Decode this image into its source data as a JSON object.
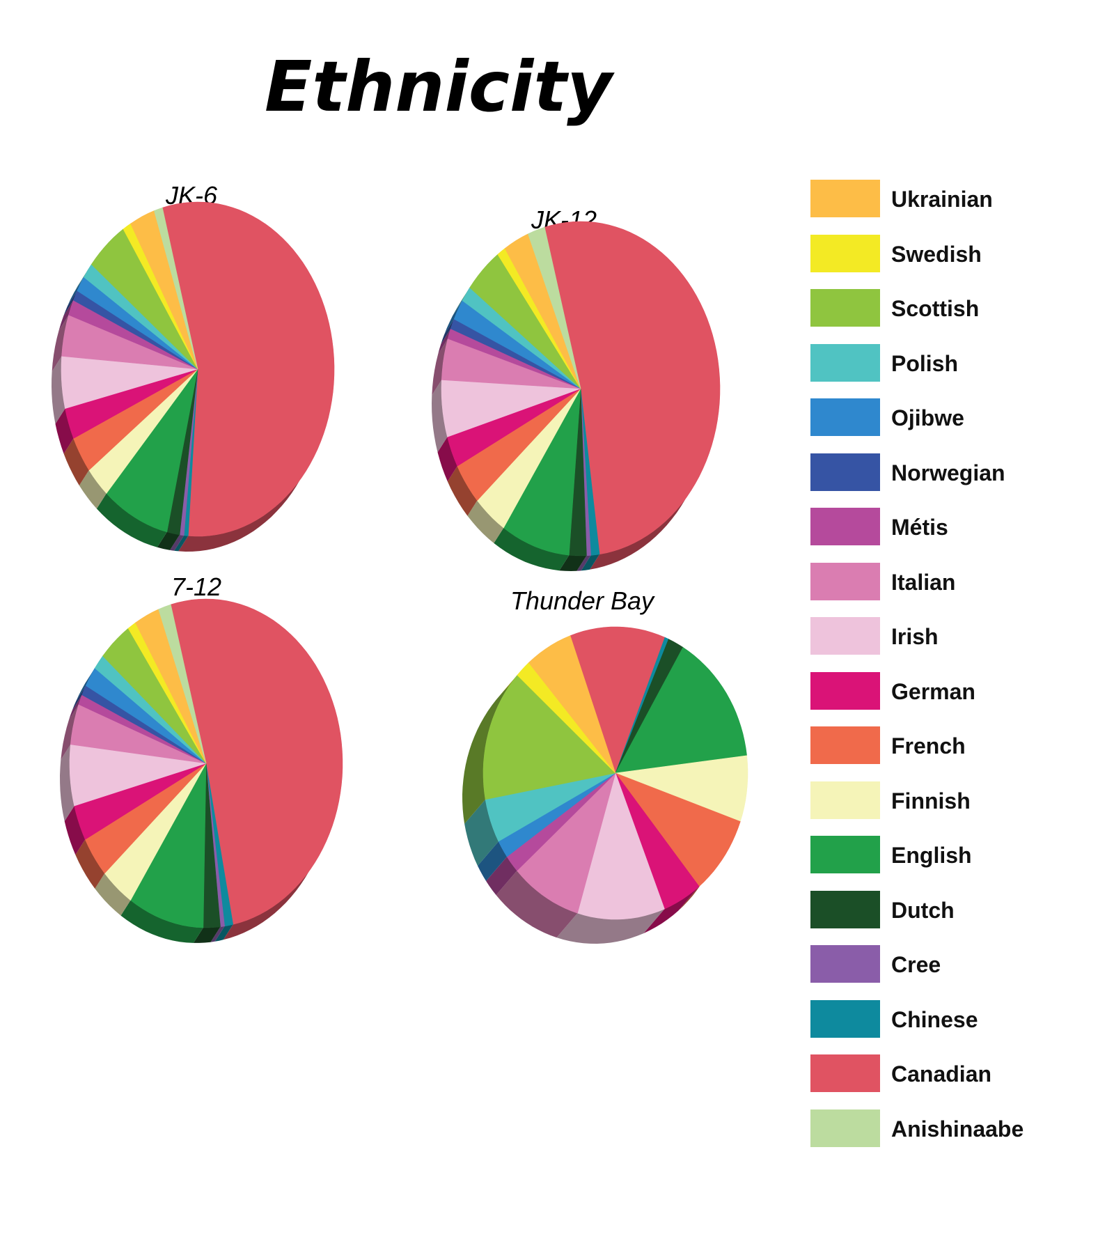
{
  "title": "Ethnicity",
  "legend": [
    {
      "label": "Ukrainian",
      "color": "#FDBD47"
    },
    {
      "label": "Swedish",
      "color": "#F3EA24"
    },
    {
      "label": "Scottish",
      "color": "#8FC53F"
    },
    {
      "label": "Polish",
      "color": "#50C3C2"
    },
    {
      "label": "Ojibwe",
      "color": "#2F88CE"
    },
    {
      "label": "Norwegian",
      "color": "#3654A4"
    },
    {
      "label": "Métis",
      "color": "#B54A9C"
    },
    {
      "label": "Italian",
      "color": "#DA7DB1"
    },
    {
      "label": "Irish",
      "color": "#EEC3DC"
    },
    {
      "label": "German",
      "color": "#DA1377"
    },
    {
      "label": "French",
      "color": "#F06A4B"
    },
    {
      "label": "Finnish",
      "color": "#F5F4B8"
    },
    {
      "label": "English",
      "color": "#22A14A"
    },
    {
      "label": "Dutch",
      "color": "#1B4F27"
    },
    {
      "label": "Cree",
      "color": "#8A5DA9"
    },
    {
      "label": "Chinese",
      "color": "#0E8A9E"
    },
    {
      "label": "Canadian",
      "color": "#E05362"
    },
    {
      "label": "Anishinaabe",
      "color": "#BCDC9F"
    }
  ],
  "chart_data": [
    {
      "type": "pie",
      "title": "JK-6",
      "categories": [
        "Ukrainian",
        "Swedish",
        "Scottish",
        "Polish",
        "Ojibwe",
        "Norwegian",
        "Métis",
        "Italian",
        "Irish",
        "German",
        "French",
        "Finnish",
        "English",
        "Dutch",
        "Cree",
        "Chinese",
        "Canadian",
        "Anishinaabe"
      ],
      "values": [
        3.0,
        1.0,
        5.0,
        1.5,
        1.5,
        1.0,
        1.5,
        4.0,
        5.0,
        3.0,
        3.5,
        3.0,
        8.0,
        1.5,
        0.5,
        0.5,
        55.0,
        1.0
      ]
    },
    {
      "type": "pie",
      "title": "JK-12",
      "categories": [
        "Ukrainian",
        "Swedish",
        "Scottish",
        "Polish",
        "Ojibwe",
        "Norwegian",
        "Métis",
        "Italian",
        "Irish",
        "German",
        "French",
        "Finnish",
        "English",
        "Dutch",
        "Cree",
        "Chinese",
        "Canadian",
        "Anishinaabe"
      ],
      "values": [
        3.0,
        1.0,
        4.5,
        1.5,
        2.0,
        1.0,
        1.0,
        4.0,
        5.5,
        3.0,
        4.0,
        4.0,
        8.0,
        2.0,
        0.5,
        1.0,
        52.0,
        2.0
      ]
    },
    {
      "type": "pie",
      "title": "7-12",
      "categories": [
        "Ukrainian",
        "Swedish",
        "Scottish",
        "Polish",
        "Ojibwe",
        "Norwegian",
        "Métis",
        "Italian",
        "Irish",
        "German",
        "French",
        "Finnish",
        "English",
        "Dutch",
        "Cree",
        "Chinese",
        "Canadian",
        "Anishinaabe"
      ],
      "values": [
        3.0,
        1.0,
        4.0,
        1.5,
        2.0,
        1.0,
        1.0,
        4.0,
        6.0,
        3.5,
        4.0,
        4.0,
        9.0,
        2.0,
        0.5,
        1.0,
        51.0,
        1.5
      ]
    },
    {
      "type": "pie",
      "title": "Thunder Bay",
      "categories": [
        "Ukrainian",
        "Swedish",
        "Scottish",
        "Polish",
        "Ojibwe",
        "Norwegian",
        "Métis",
        "Italian",
        "Irish",
        "German",
        "French",
        "Finnish",
        "English",
        "Dutch",
        "Cree",
        "Chinese",
        "Canadian",
        "Anishinaabe"
      ],
      "values": [
        6.0,
        2.0,
        15.0,
        5.0,
        2.0,
        0.0,
        2.0,
        9.0,
        11.0,
        5.0,
        9.0,
        7.5,
        15.0,
        2.0,
        0.0,
        0.5,
        12.0,
        0.0
      ]
    }
  ]
}
